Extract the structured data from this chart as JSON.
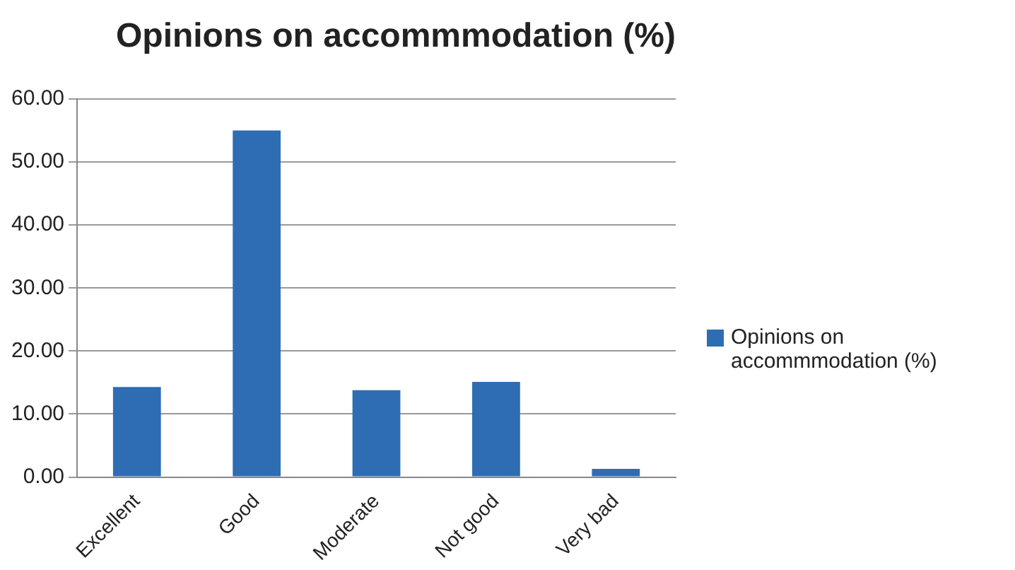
{
  "chart_data": {
    "type": "bar",
    "title": "Opinions on accommmodation (%)",
    "categories": [
      "Excellent",
      "Good",
      "Moderate",
      "Not good",
      "Very bad"
    ],
    "series": [
      {
        "name": "Opinions on accommmodation (%)",
        "color": "#2e6db4",
        "values": [
          14.3,
          55.0,
          13.8,
          15.1,
          1.3
        ]
      }
    ],
    "ylim": [
      0,
      60
    ],
    "yticks": [
      {
        "value": 0,
        "label": "0.00"
      },
      {
        "value": 10,
        "label": "10.00"
      },
      {
        "value": 20,
        "label": "20.00"
      },
      {
        "value": 30,
        "label": "30.00"
      },
      {
        "value": 40,
        "label": "40.00"
      },
      {
        "value": 50,
        "label": "50.00"
      },
      {
        "value": 60,
        "label": "60.00"
      }
    ],
    "grid": "y",
    "legend": "right"
  }
}
